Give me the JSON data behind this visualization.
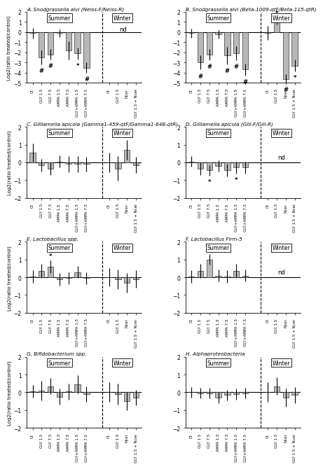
{
  "panels": [
    {
      "label": "A",
      "title_main": "Snodgrassella alvi",
      "title_sub": "(Neiss-F/Neiss-R)",
      "ylim": [
        -5,
        2
      ],
      "yticks": [
        -5,
        -4,
        -3,
        -2,
        -1,
        0,
        1,
        2
      ],
      "summer_bars": [
        -0.1,
        -2.5,
        -2.2,
        -0.1,
        -1.8,
        -2.1,
        -3.5
      ],
      "summer_errs": [
        0.5,
        0.7,
        0.5,
        0.4,
        0.9,
        0.6,
        0.5
      ],
      "summer_sig_sym": [
        "",
        "#",
        "#",
        "",
        "",
        "*",
        "#"
      ],
      "winter_bars": [
        null,
        null,
        null,
        null
      ],
      "winter_errs": [
        null,
        null,
        null,
        null
      ],
      "winter_nd": true,
      "winter_sig_sym": [
        "",
        "",
        "",
        ""
      ],
      "has_winter_data": false,
      "n_summer": 7,
      "n_winter": 4
    },
    {
      "label": "B",
      "title_main": "Snodgrassella alvi",
      "title_sub": "(Beta-1009-qtF/Beta-115-qtR)",
      "ylim": [
        -5,
        2
      ],
      "yticks": [
        -5,
        -4,
        -3,
        -2,
        -1,
        0,
        1,
        2
      ],
      "summer_bars": [
        -0.1,
        -3.0,
        -2.2,
        -0.2,
        -2.3,
        -2.1,
        -3.7
      ],
      "summer_errs": [
        0.45,
        0.7,
        0.55,
        0.4,
        0.85,
        0.7,
        0.6
      ],
      "summer_sig_sym": [
        "",
        "#",
        "#",
        "",
        "#",
        "#",
        "#"
      ],
      "winter_bars": [
        -0.1,
        1.1,
        -4.6,
        -3.3
      ],
      "winter_errs": [
        0.7,
        0.35,
        0.45,
        0.6
      ],
      "winter_nd": false,
      "winter_sig_sym": [
        "",
        "*",
        "#",
        "*"
      ],
      "has_winter_data": true,
      "n_summer": 7,
      "n_winter": 4
    },
    {
      "label": "C",
      "title_main": "Gilliamella apicola",
      "title_sub": "(Gamma1-459-qtF/Gamma1-648-qtR)",
      "ylim": [
        -2,
        2
      ],
      "yticks": [
        -2,
        -1,
        0,
        1,
        2
      ],
      "summer_bars": [
        0.55,
        -0.15,
        -0.35,
        0.05,
        -0.1,
        -0.1,
        -0.1
      ],
      "summer_errs": [
        0.5,
        0.35,
        0.35,
        0.35,
        0.45,
        0.45,
        0.4
      ],
      "summer_sig_sym": [
        "",
        "",
        "",
        "",
        "",
        "",
        ""
      ],
      "winter_bars": [
        0.0,
        -0.35,
        0.7,
        -0.15
      ],
      "winter_errs": [
        0.55,
        0.7,
        0.55,
        0.45
      ],
      "winter_nd": false,
      "winter_sig_sym": [
        "",
        "",
        "",
        ""
      ],
      "has_winter_data": true,
      "n_summer": 7,
      "n_winter": 4
    },
    {
      "label": "D",
      "title_main": "Gilliamella apicola",
      "title_sub": "(Gill-F/Gill-R)",
      "ylim": [
        -2,
        2
      ],
      "yticks": [
        -2,
        -1,
        0,
        1,
        2
      ],
      "summer_bars": [
        0.05,
        -0.35,
        -0.45,
        -0.2,
        -0.45,
        -0.3,
        -0.3
      ],
      "summer_errs": [
        0.3,
        0.35,
        0.3,
        0.3,
        0.35,
        0.35,
        0.35
      ],
      "summer_sig_sym": [
        "",
        "",
        "*",
        "",
        "",
        "*",
        ""
      ],
      "winter_bars": [
        null,
        null,
        null,
        null
      ],
      "winter_errs": [
        null,
        null,
        null,
        null
      ],
      "winter_nd": true,
      "winter_sig_sym": [
        "",
        "",
        "",
        ""
      ],
      "has_winter_data": false,
      "n_summer": 7,
      "n_winter": 4
    },
    {
      "label": "E",
      "title_main": "Lactobacillus spp.",
      "title_sub": "",
      "ylim": [
        -2,
        2
      ],
      "yticks": [
        -2,
        -1,
        0,
        1,
        2
      ],
      "summer_bars": [
        0.05,
        0.35,
        0.6,
        -0.1,
        -0.05,
        0.3,
        -0.05
      ],
      "summer_errs": [
        0.35,
        0.4,
        0.35,
        0.35,
        0.35,
        0.35,
        0.35
      ],
      "summer_sig_sym": [
        "",
        "",
        "*",
        "",
        "",
        "",
        ""
      ],
      "winter_bars": [
        0.0,
        -0.1,
        -0.3,
        -0.1
      ],
      "winter_errs": [
        0.5,
        0.55,
        0.55,
        0.5
      ],
      "winter_nd": false,
      "winter_sig_sym": [
        "",
        "",
        "",
        ""
      ],
      "has_winter_data": true,
      "n_summer": 7,
      "n_winter": 4
    },
    {
      "label": "F",
      "title_main": "Lactobacillus Firm-5",
      "title_sub": "",
      "ylim": [
        -2,
        2
      ],
      "yticks": [
        -2,
        -1,
        0,
        1,
        2
      ],
      "summer_bars": [
        0.05,
        0.35,
        1.0,
        0.1,
        0.05,
        0.35,
        0.1
      ],
      "summer_errs": [
        0.35,
        0.4,
        0.3,
        0.35,
        0.35,
        0.4,
        0.35
      ],
      "summer_sig_sym": [
        "",
        "",
        "*",
        "",
        "",
        "",
        ""
      ],
      "winter_bars": [
        null,
        null,
        null,
        null
      ],
      "winter_errs": [
        null,
        null,
        null,
        null
      ],
      "winter_nd": true,
      "winter_sig_sym": [
        "",
        "",
        "",
        ""
      ],
      "has_winter_data": false,
      "n_summer": 7,
      "n_winter": 4
    },
    {
      "label": "G",
      "title_main": "Bifidobacterium spp.",
      "title_sub": "",
      "ylim": [
        -2,
        2
      ],
      "yticks": [
        -2,
        -1,
        0,
        1,
        2
      ],
      "summer_bars": [
        0.05,
        0.1,
        0.35,
        -0.25,
        0.05,
        0.45,
        -0.1
      ],
      "summer_errs": [
        0.35,
        0.55,
        0.45,
        0.45,
        0.45,
        0.5,
        0.45
      ],
      "summer_sig_sym": [
        "",
        "",
        "",
        "",
        "",
        "",
        ""
      ],
      "winter_bars": [
        0.0,
        -0.1,
        -0.5,
        -0.3
      ],
      "winter_errs": [
        0.55,
        0.6,
        0.5,
        0.45
      ],
      "winter_nd": false,
      "winter_sig_sym": [
        "",
        "",
        "",
        ""
      ],
      "has_winter_data": true,
      "n_summer": 7,
      "n_winter": 4
    },
    {
      "label": "H",
      "title_main": "Alphaproteobacteria",
      "title_sub": "",
      "ylim": [
        -2,
        2
      ],
      "yticks": [
        -2,
        -1,
        0,
        1,
        2
      ],
      "summer_bars": [
        0.0,
        -0.05,
        -0.05,
        -0.3,
        -0.15,
        -0.1,
        -0.05
      ],
      "summer_errs": [
        0.3,
        0.3,
        0.3,
        0.3,
        0.3,
        0.3,
        0.3
      ],
      "summer_sig_sym": [
        "",
        "",
        "",
        "",
        "",
        "",
        ""
      ],
      "winter_bars": [
        0.0,
        0.35,
        -0.3,
        -0.15
      ],
      "winter_errs": [
        0.55,
        0.5,
        0.5,
        0.45
      ],
      "winter_nd": false,
      "winter_sig_sym": [
        "",
        "",
        "",
        ""
      ],
      "has_winter_data": true,
      "n_summer": 7,
      "n_winter": 4
    }
  ],
  "summer_xtick_labels": [
    "Ct",
    "GLY 1.5",
    "GLY 7.5",
    "AMPA 1.5",
    "AMPA 7.5",
    "GLY+AMPA 1.5",
    "GLY+AMPA 7.5"
  ],
  "winter_xtick_labels": [
    "Ct",
    "GLY 1.5",
    "Ncer",
    "GLY 1.5 + Ncer"
  ],
  "bar_color": "#b8b8b8",
  "bar_edge_color": "#333333",
  "bar_width": 0.65,
  "ylabel": "Log2(ratio treated/control)",
  "background_color": "#ffffff"
}
